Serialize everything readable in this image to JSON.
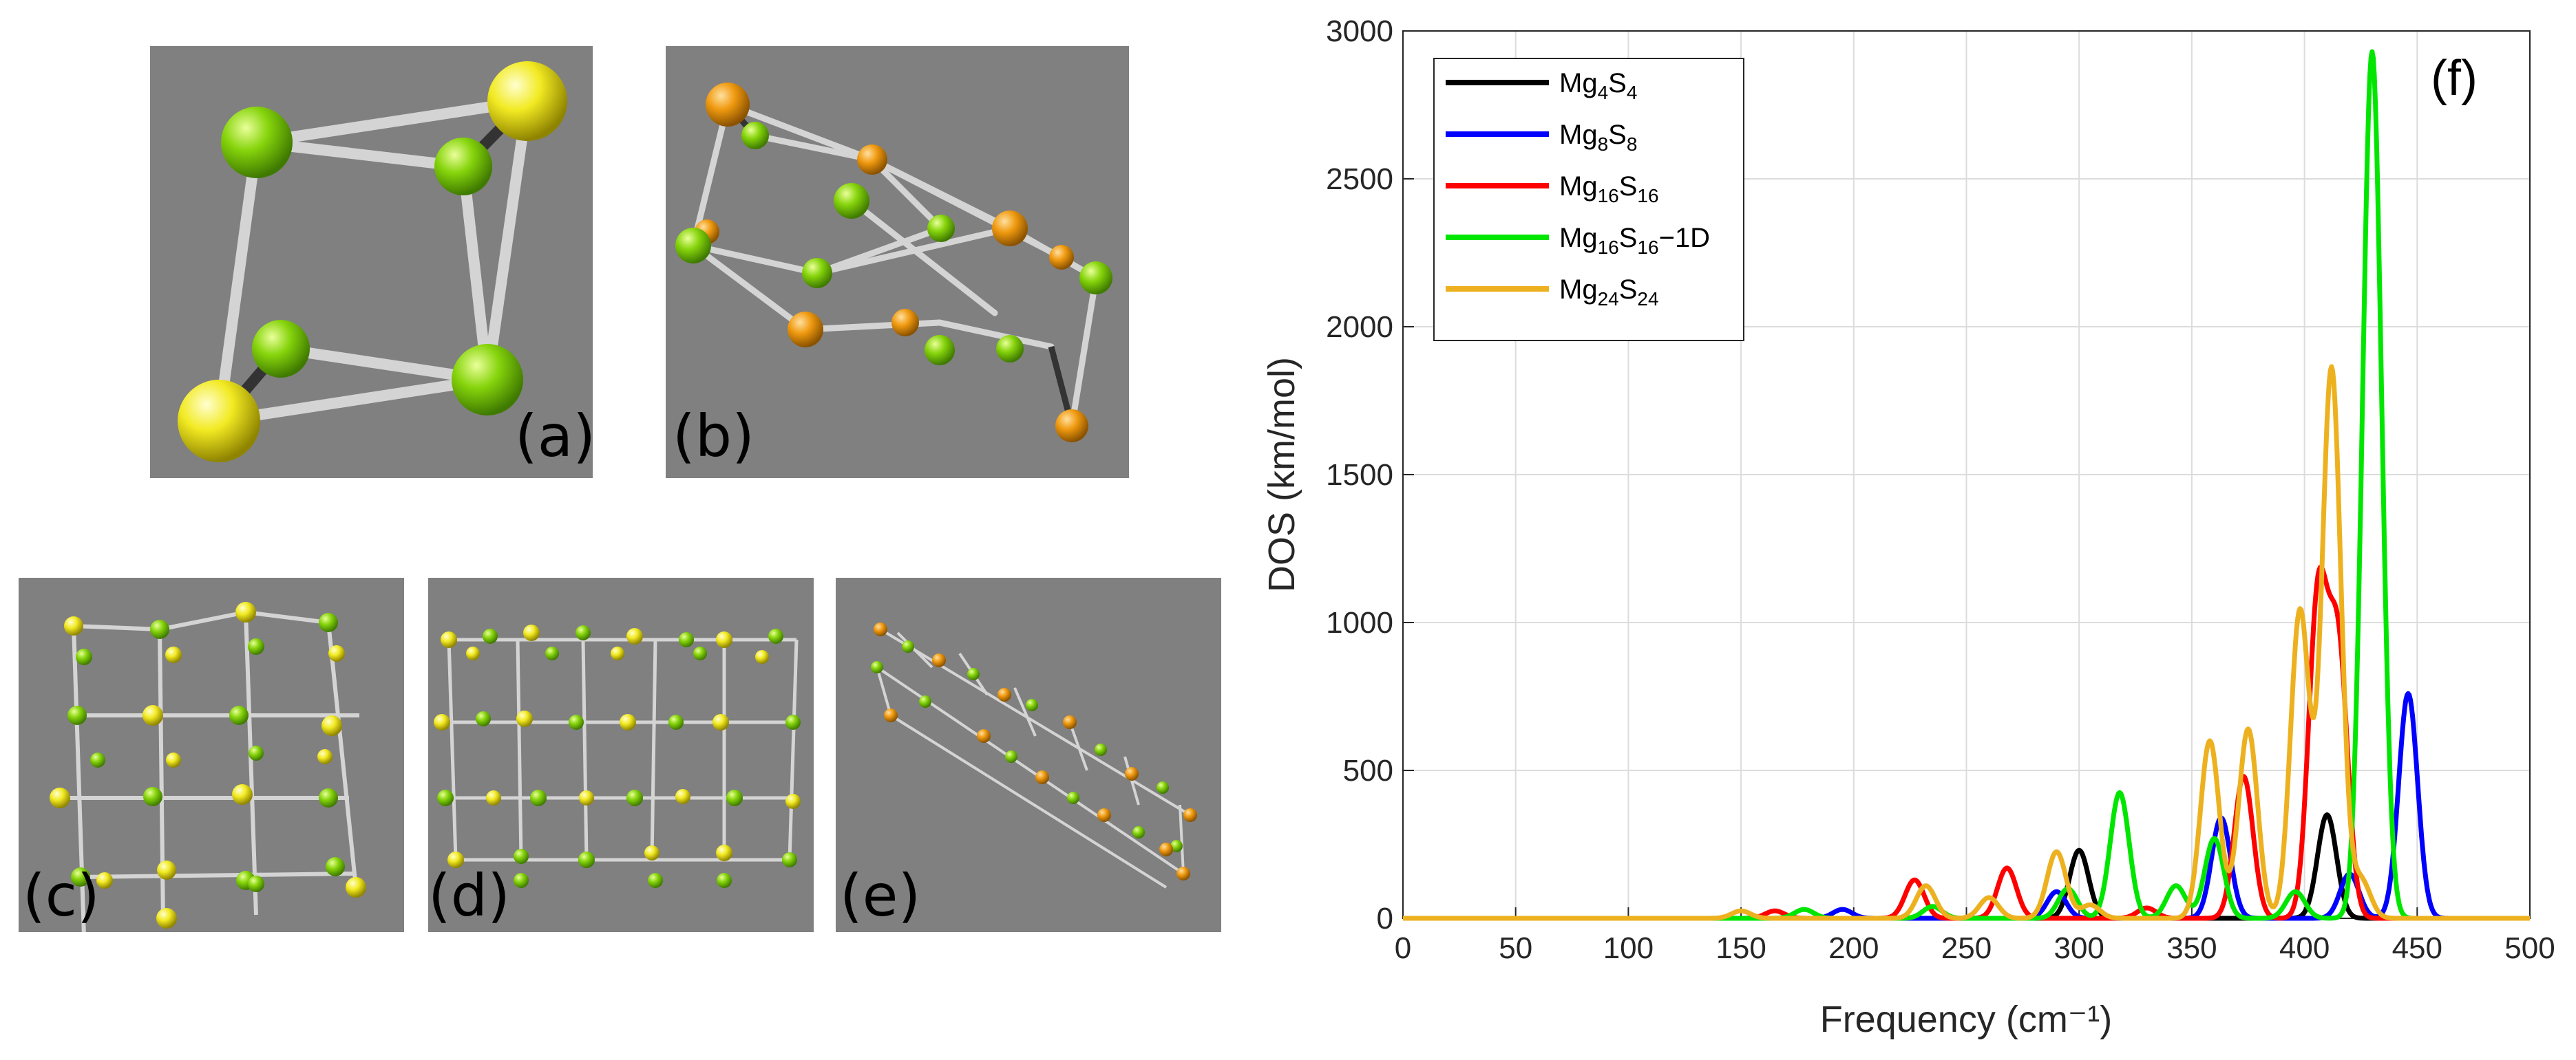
{
  "panels": {
    "a": "(a)",
    "b": "(b)",
    "c": "(c)",
    "d": "(d)",
    "e": "(e)",
    "f": "(f)"
  },
  "colors": {
    "panel_bg": "#808080",
    "mg_atom": "#7fd400",
    "s_atom_yellow": "#f5ec1e",
    "s_atom_orange": "#f0a010",
    "bond": "#d8d8d8"
  },
  "chart_data": {
    "type": "line",
    "title": "",
    "xlabel": "Frequency (cm⁻¹)",
    "ylabel": "DOS (km/mol)",
    "xlim": [
      0,
      500
    ],
    "ylim": [
      0,
      3000
    ],
    "grid": true,
    "legend_position": "top-left",
    "xticks": [
      "0",
      "50",
      "100",
      "150",
      "200",
      "250",
      "300",
      "350",
      "400",
      "450",
      "500"
    ],
    "yticks": [
      "0",
      "500",
      "1000",
      "1500",
      "2000",
      "2500",
      "3000"
    ],
    "series": [
      {
        "name": "Mg4S4",
        "label_base": "Mg",
        "sub1": "4",
        "label_mid": "S",
        "sub2": "4",
        "label_suffix": "",
        "color": "#000000",
        "peaks": [
          [
            300,
            230
          ],
          [
            410,
            350
          ]
        ]
      },
      {
        "name": "Mg8S8",
        "label_base": "Mg",
        "sub1": "8",
        "label_mid": "S",
        "sub2": "8",
        "label_suffix": "",
        "color": "#0000ff",
        "peaks": [
          [
            195,
            30
          ],
          [
            290,
            90
          ],
          [
            363,
            340
          ],
          [
            420,
            150
          ],
          [
            446,
            760
          ]
        ]
      },
      {
        "name": "Mg16S16",
        "label_base": "Mg",
        "sub1": "16",
        "label_mid": "S",
        "sub2": "16",
        "label_suffix": "",
        "color": "#ff0000",
        "peaks": [
          [
            165,
            25
          ],
          [
            227,
            130
          ],
          [
            268,
            170
          ],
          [
            330,
            35
          ],
          [
            373,
            480
          ],
          [
            406,
            1070
          ],
          [
            415,
            900
          ]
        ]
      },
      {
        "name": "Mg16S16-1D",
        "label_base": "Mg",
        "sub1": "16",
        "label_mid": "S",
        "sub2": "16",
        "label_suffix": "−1D",
        "color": "#00e600",
        "peaks": [
          [
            178,
            30
          ],
          [
            235,
            40
          ],
          [
            295,
            100
          ],
          [
            318,
            425
          ],
          [
            343,
            110
          ],
          [
            360,
            270
          ],
          [
            396,
            90
          ],
          [
            430,
            2930
          ]
        ]
      },
      {
        "name": "Mg24S24",
        "label_base": "Mg",
        "sub1": "24",
        "label_mid": "S",
        "sub2": "24",
        "label_suffix": "",
        "color": "#edb120",
        "peaks": [
          [
            150,
            25
          ],
          [
            232,
            110
          ],
          [
            260,
            70
          ],
          [
            290,
            225
          ],
          [
            305,
            45
          ],
          [
            358,
            600
          ],
          [
            375,
            640
          ],
          [
            398,
            1040
          ],
          [
            412,
            1860
          ],
          [
            425,
            130
          ]
        ]
      }
    ]
  }
}
